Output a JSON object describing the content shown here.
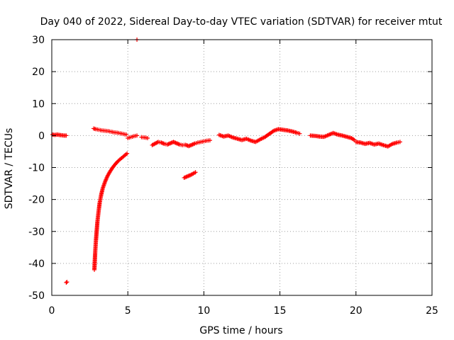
{
  "chart_data": {
    "type": "scatter",
    "title": "Day 040 of 2022, Sidereal Day-to-day VTEC variation (SDTVAR) for receiver mtut",
    "xlabel": "GPS time / hours",
    "ylabel": "SDTVAR / TECUs",
    "xlim": [
      0,
      25
    ],
    "ylim": [
      -50,
      30
    ],
    "x_ticks": [
      0,
      5,
      10,
      15,
      20,
      25
    ],
    "y_ticks": [
      -50,
      -40,
      -30,
      -20,
      -10,
      0,
      10,
      20,
      30
    ],
    "grid": true,
    "marker": "+",
    "series_color": "#ff0000",
    "series": [
      {
        "name": "mtut",
        "segments": [
          {
            "x": [
              0.05,
              0.2,
              0.35,
              0.5,
              0.65,
              0.8,
              0.95
            ],
            "y": [
              0.3,
              0.2,
              0.3,
              0.2,
              0.1,
              0.0,
              0.0
            ]
          },
          {
            "x": [
              0.95,
              1.0
            ],
            "y": [
              -46.0,
              -45.8
            ]
          },
          {
            "x": [
              2.8,
              2.83,
              2.86,
              2.9,
              2.95,
              3.0,
              3.07,
              3.15,
              3.25,
              3.35,
              3.5,
              3.65,
              3.8,
              4.0,
              4.2,
              4.4,
              4.6,
              4.8,
              4.95
            ],
            "y": [
              -42.0,
              -39.0,
              -36.0,
              -33.0,
              -30.0,
              -27.0,
              -24.0,
              -21.0,
              -18.5,
              -16.5,
              -14.5,
              -12.8,
              -11.5,
              -10.0,
              -8.8,
              -7.8,
              -7.0,
              -6.2,
              -5.6
            ]
          },
          {
            "x": [
              2.75,
              2.9,
              3.1,
              3.3,
              3.5,
              3.7,
              3.9,
              4.1,
              4.3,
              4.5,
              4.7,
              4.9
            ],
            "y": [
              2.2,
              2.0,
              1.8,
              1.6,
              1.5,
              1.4,
              1.2,
              1.0,
              0.9,
              0.7,
              0.5,
              0.3
            ]
          },
          {
            "x": [
              5.0,
              5.2,
              5.4,
              5.6
            ],
            "y": [
              -0.8,
              -0.5,
              -0.2,
              0.0
            ]
          },
          {
            "x": [
              5.6
            ],
            "y": [
              30.0
            ]
          },
          {
            "x": [
              5.9,
              6.1,
              6.3
            ],
            "y": [
              -0.5,
              -0.6,
              -0.8
            ]
          },
          {
            "x": [
              6.6,
              6.8,
              7.0,
              7.2,
              7.4,
              7.6,
              7.8,
              8.0,
              8.2,
              8.4,
              8.6,
              8.8,
              9.0,
              9.2,
              9.4,
              9.6,
              9.8,
              10.0,
              10.2,
              10.4
            ],
            "y": [
              -3.0,
              -2.5,
              -2.0,
              -2.2,
              -2.6,
              -2.8,
              -2.4,
              -2.0,
              -2.4,
              -2.8,
              -3.0,
              -2.9,
              -3.3,
              -2.9,
              -2.5,
              -2.2,
              -2.0,
              -1.8,
              -1.6,
              -1.5
            ]
          },
          {
            "x": [
              8.7,
              8.9,
              9.1,
              9.3,
              9.45
            ],
            "y": [
              -13.2,
              -12.8,
              -12.4,
              -11.9,
              -11.5
            ]
          },
          {
            "x": [
              11.0,
              11.3,
              11.6,
              11.9,
              12.2,
              12.5,
              12.8,
              13.1,
              13.4,
              13.7,
              14.0,
              14.3,
              14.6,
              14.9,
              15.2,
              15.5,
              15.8,
              16.1,
              16.3
            ],
            "y": [
              0.2,
              -0.3,
              0.0,
              -0.6,
              -1.0,
              -1.4,
              -1.0,
              -1.6,
              -2.0,
              -1.2,
              -0.5,
              0.5,
              1.5,
              2.0,
              1.8,
              1.6,
              1.3,
              0.9,
              0.6
            ]
          },
          {
            "x": [
              17.0,
              17.3,
              17.6,
              17.9,
              18.2,
              18.5,
              18.8,
              19.1,
              19.4,
              19.7,
              19.9
            ],
            "y": [
              0.0,
              -0.1,
              -0.3,
              -0.4,
              0.2,
              0.8,
              0.3,
              0.0,
              -0.4,
              -0.8,
              -1.4
            ]
          },
          {
            "x": [
              20.0,
              20.3,
              20.6,
              20.9,
              21.2,
              21.5,
              21.8,
              22.1,
              22.4,
              22.7,
              22.9
            ],
            "y": [
              -2.0,
              -2.2,
              -2.6,
              -2.3,
              -2.8,
              -2.5,
              -3.0,
              -3.4,
              -2.6,
              -2.2,
              -2.0
            ]
          }
        ]
      }
    ]
  }
}
